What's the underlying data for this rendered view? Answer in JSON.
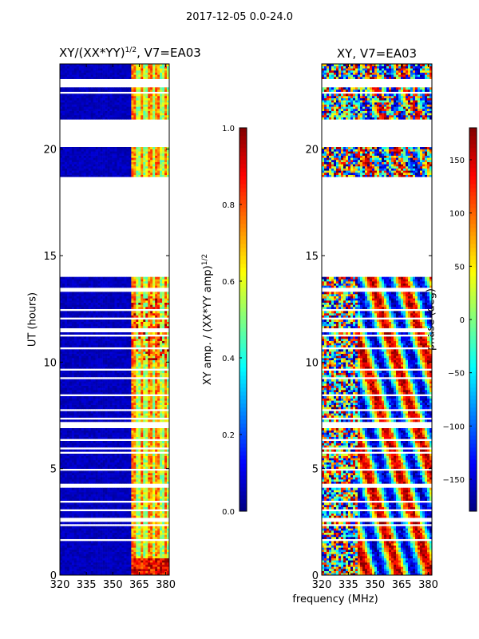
{
  "suptitle": "2017-12-05 0.0-24.0",
  "chart_data": [
    {
      "type": "heatmap",
      "title": "XY/(XX*YY)",
      "title_exponent": "1/2",
      "title_suffix": ", V7=EA03",
      "xlabel": "",
      "ylabel": "UT (hours)",
      "xlim": [
        320,
        382
      ],
      "ylim": [
        0,
        24
      ],
      "xticks": [
        320,
        335,
        350,
        365,
        380
      ],
      "yticks": [
        0,
        5,
        10,
        15,
        20
      ],
      "colorbar": {
        "label": "XY amp. / (XX*YY amp)",
        "label_exponent": "1/2",
        "range": [
          0.0,
          1.0
        ],
        "ticks": [
          "0.0",
          "0.2",
          "0.4",
          "0.6",
          "0.8",
          "1.0"
        ],
        "colormap": "jet"
      },
      "data_gaps_hours": [
        [
          14.0,
          18.7
        ],
        [
          20.7,
          20.0
        ],
        [
          20.8,
          21.4
        ],
        [
          23.0,
          23.3
        ]
      ],
      "signal_band_MHz": [
        361,
        382
      ]
    },
    {
      "type": "heatmap",
      "title": "XY, V7=EA03",
      "xlabel": "frequency (MHz)",
      "ylabel": "",
      "xlim": [
        320,
        382
      ],
      "ylim": [
        0,
        24
      ],
      "xticks": [
        320,
        335,
        350,
        365,
        380
      ],
      "yticks": [
        0,
        5,
        10,
        15,
        20
      ],
      "colorbar": {
        "label": "phase (deg)",
        "range": [
          -180,
          180
        ],
        "ticks": [
          "150",
          "100",
          "50",
          "0",
          "−50",
          "−100",
          "−150"
        ],
        "colormap": "jet"
      }
    }
  ],
  "ytick_labels": [
    "0",
    "5",
    "10",
    "15",
    "20"
  ],
  "xtick_labels": [
    "320",
    "335",
    "350",
    "365",
    "380"
  ],
  "colors": {
    "jet_dark_blue": "#00007f",
    "jet_blue": "#0000ff",
    "jet_cyan": "#00ffff",
    "jet_yellow": "#ffff00",
    "jet_red": "#ff0000",
    "jet_dark_red": "#7f0000"
  }
}
